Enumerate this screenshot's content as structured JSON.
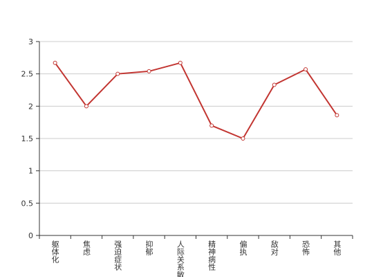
{
  "chart_data": {
    "type": "line",
    "categories": [
      "躯体化",
      "焦虑",
      "强迫症状",
      "抑郁",
      "人际关系敏感",
      "精神病性",
      "偏执",
      "敌对",
      "恐怖",
      "其他"
    ],
    "series": [
      {
        "color": "#c23531",
        "values": [
          2.67,
          2.0,
          2.5,
          2.54,
          2.67,
          1.7,
          1.5,
          2.33,
          2.57,
          1.86
        ]
      }
    ],
    "ylim": [
      0,
      3
    ],
    "yticks": [
      0,
      0.5,
      1,
      1.5,
      2,
      2.5,
      3
    ],
    "grid": true
  }
}
